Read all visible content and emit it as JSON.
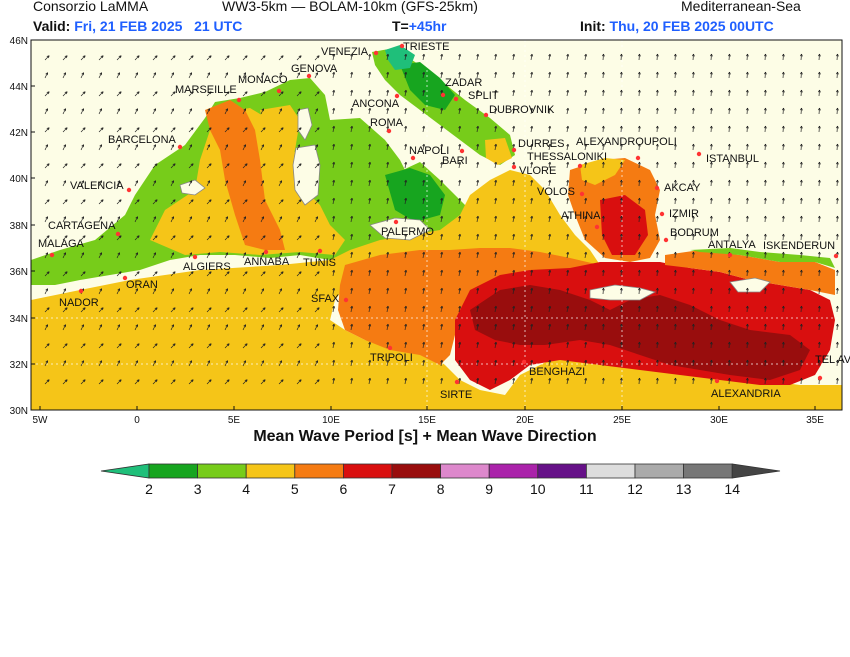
{
  "header": {
    "org": "Consorzio LaMMA",
    "model": "WW3-5km — BOLAM-10km (GFS-25km)",
    "region": "Mediterranean-Sea",
    "valid_label": "Valid:",
    "valid_value": "Fri, 21 FEB 2025   21 UTC",
    "t_label": "T=",
    "t_value": "+45hr",
    "init_label": "Init:",
    "init_value": "Thu, 20 FEB 2025 00UTC"
  },
  "map_title": "Mean Wave Period [s] + Mean Wave Direction",
  "lat_ticks": [
    "46N",
    "44N",
    "42N",
    "40N",
    "38N",
    "36N",
    "34N",
    "32N",
    "30N"
  ],
  "lon_ticks": [
    "5W",
    "0",
    "5E",
    "10E",
    "15E",
    "20E",
    "25E",
    "30E",
    "35E"
  ],
  "colorbar": {
    "labels": [
      "2",
      "3",
      "4",
      "5",
      "6",
      "7",
      "8",
      "9",
      "10",
      "11",
      "12",
      "13",
      "14"
    ],
    "colors": [
      "#1fbf7a",
      "#17a51f",
      "#77cc1a",
      "#f5c518",
      "#f57b12",
      "#d90f0f",
      "#990d0d",
      "#dd88cc",
      "#aa22aa",
      "#661188",
      "#dddddd",
      "#aaaaaa",
      "#777777",
      "#444444"
    ]
  },
  "cities": [
    {
      "name": "VENEZIA"
    },
    {
      "name": "TRIESTE"
    },
    {
      "name": "GENOVA"
    },
    {
      "name": "MONACO"
    },
    {
      "name": "MARSEILLE"
    },
    {
      "name": "ZADAR"
    },
    {
      "name": "SPLIT"
    },
    {
      "name": "ANCONA"
    },
    {
      "name": "DUBROVNIK"
    },
    {
      "name": "ROMA"
    },
    {
      "name": "BARCELONA"
    },
    {
      "name": "DURRES"
    },
    {
      "name": "ALEXANDROUPOLI"
    },
    {
      "name": "NAPOLI"
    },
    {
      "name": "THESSALONIKI"
    },
    {
      "name": "ISTANBUL"
    },
    {
      "name": "BARI"
    },
    {
      "name": "VLORE"
    },
    {
      "name": "VALENCIA"
    },
    {
      "name": "VOLOS"
    },
    {
      "name": "AKCAY"
    },
    {
      "name": "IZMIR"
    },
    {
      "name": "ATHINA"
    },
    {
      "name": "CARTAGENA"
    },
    {
      "name": "PALERMO"
    },
    {
      "name": "BODRUM"
    },
    {
      "name": "MALAGA"
    },
    {
      "name": "ANTALYA"
    },
    {
      "name": "ISKENDERUN"
    },
    {
      "name": "ALGIERS"
    },
    {
      "name": "ANNABA"
    },
    {
      "name": "TUNIS"
    },
    {
      "name": "ORAN"
    },
    {
      "name": "NADOR"
    },
    {
      "name": "SFAX"
    },
    {
      "name": "TRIPOLI"
    },
    {
      "name": "BENGHAZI"
    },
    {
      "name": "TEL AVIV"
    },
    {
      "name": "SIRTE"
    },
    {
      "name": "ALEXANDRIA"
    }
  ]
}
